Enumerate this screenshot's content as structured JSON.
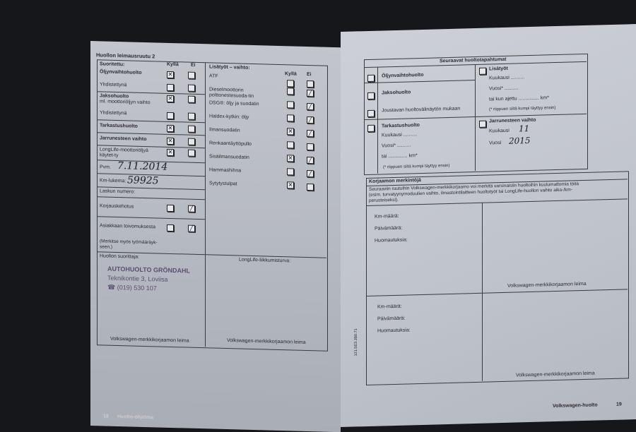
{
  "left_page": {
    "title": "Huollon leimausruutu 2",
    "performed_header": "Suoritettu:",
    "yes": "Kyllä",
    "no": "Ei",
    "services": [
      {
        "label": "Öljynvaihtohuolto",
        "bold": true,
        "yes": "x",
        "no": ""
      },
      {
        "label": "Yhdistettynä",
        "bold": false,
        "yes": "",
        "no": ""
      },
      {
        "label": "Jaksohuolto",
        "sub": "ml. moottoriöljyn vaihto",
        "bold": true,
        "yes": "x",
        "no": ""
      },
      {
        "label": "Yhdistettynä",
        "bold": false,
        "yes": "",
        "no": ""
      },
      {
        "label": "Tarkastushuolto",
        "bold": true,
        "yes": "x",
        "no": ""
      },
      {
        "label": "Jarrunesteen vaihto",
        "bold": true,
        "yes": "x",
        "no": ""
      },
      {
        "label": "LongLife-moottoriöljyä käytet-ty",
        "bold": false,
        "yes": "x",
        "no": ""
      }
    ],
    "date_label": "Pvm.",
    "date_value": "7.11.2014",
    "km_label": "Km-lukema:",
    "km_value": "59925",
    "invoice_label": "Laskun numero:",
    "repair_request": {
      "label": "Korjauskehotus",
      "yes": "",
      "no": "/"
    },
    "customer_request": {
      "label": "Asiakkaan toivomuksesta",
      "yes": "",
      "no": "/"
    },
    "note": "(Merkitse myös työmääräyk-seen.)",
    "performer_label": "Huollon suorittaja:",
    "stamp": {
      "name": "AUTOHUOLTO GRÖNDAHL",
      "address": "Teknikontie 3, Loviisa",
      "phone": "(019) 530 107"
    },
    "stamp_caption": "Volkswagen-merkkikorjaamon leima",
    "extra_header": "Lisätyöt – vaihto:",
    "extras": [
      {
        "label": "ATF",
        "yes": "",
        "no": ""
      },
      {
        "label": "Dieselmoottorin polttonestesuoda-tin",
        "yes": "",
        "no": "/"
      },
      {
        "label": "DSG®: öljy ja suodatin",
        "yes": "",
        "no": "/"
      },
      {
        "label": "Haldex-kytkin: öljy",
        "yes": "",
        "no": "/"
      },
      {
        "label": "Ilmansuodatin",
        "yes": "x",
        "no": "/"
      },
      {
        "label": "Renkaantäyttöpullo",
        "yes": "",
        "no": ""
      },
      {
        "label": "Sisäilmansuodatin",
        "yes": "x",
        "no": "/"
      },
      {
        "label": "Hammashihna",
        "yes": "",
        "no": "/"
      },
      {
        "label": "Sytytystulpat",
        "yes": "x",
        "no": ""
      }
    ],
    "mobility_label": "LongLife-liikkumisturva:",
    "mobility_caption": "Volkswagen-merkkikorjaamon leima",
    "footer_page": "18",
    "footer_text": "Huolto-ohjelma"
  },
  "right_page": {
    "next_header": "Seuraavat huoltotapahtumat",
    "oil": "Öljynvaihtohuolto",
    "interval": "Jaksohuolto",
    "flexible": "Joustavan huoltovälinäytön mukaan",
    "inspection": "Tarkastushuolto",
    "month": "Kuukausi",
    "year": "Vuosi*",
    "or_km": "tai",
    "km": "km*",
    "or_driven": "tai kun ajettu",
    "footnote": "(* riippuen siitä kumpi täyttyy ensin)",
    "extras": "Lisätyöt",
    "brake": "Jarrunesteen vaihto",
    "brake_month_label": "Kuukausi",
    "brake_month": "11",
    "brake_year_label": "Vuosi",
    "brake_year": "2015",
    "workshop_header": "Korjaamon merkintöjä",
    "workshop_text": "Seuraaviin ruutuihin Volkswagen-merkkikorjaamo voi merkitä varsinaisiin huoltoihin kuulumattomia töitä (esim. turvatyynymoduulien vaihto, ilmastointilaitteen huoltotyöt tai LongLife-huollon vaihto aika-/km-perusteiseksi).",
    "km_label": "Km-määrä:",
    "date_label": "Päivämäärä:",
    "notes_label": "Huomautuksia:",
    "stamp_caption": "Volkswagen-merkkikorjaamon leima",
    "side_code": "121.5E3.JB0.71",
    "footer_brand": "Volkswagen-huolto",
    "footer_page": "19"
  }
}
